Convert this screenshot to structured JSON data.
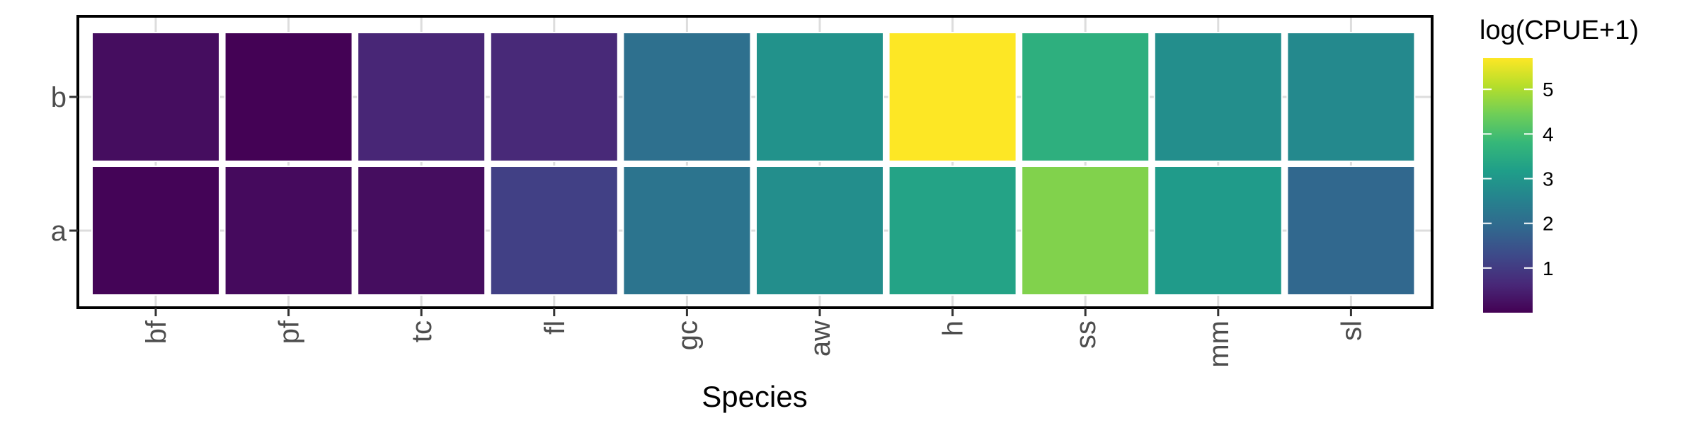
{
  "chart_data": {
    "type": "heatmap",
    "title": "",
    "xlabel": "Species",
    "ylabel": "",
    "x_categories": [
      "bf",
      "pf",
      "tc",
      "fl",
      "gc",
      "aw",
      "h",
      "ss",
      "mm",
      "sl"
    ],
    "y_categories": [
      "a",
      "b"
    ],
    "series": [
      {
        "name": "a",
        "values": [
          0.05,
          0.15,
          0.2,
          1.1,
          2.2,
          2.8,
          3.3,
          4.6,
          3.1,
          1.9
        ]
      },
      {
        "name": "b",
        "values": [
          0.2,
          0.02,
          0.6,
          0.65,
          2.1,
          2.9,
          5.7,
          3.6,
          2.8,
          2.7
        ]
      }
    ],
    "colorbar": {
      "title": "log(CPUE+1)",
      "range": [
        0,
        5.7
      ],
      "ticks": [
        1,
        2,
        3,
        4,
        5
      ],
      "palette": "viridis"
    },
    "grid": true,
    "legend_position": "right"
  },
  "colors": {
    "viridis": [
      "#440154",
      "#482878",
      "#3e4989",
      "#31688e",
      "#26828e",
      "#1f9e89",
      "#35b779",
      "#6ece58",
      "#b5de2b",
      "#fde725"
    ],
    "tile_border": "#ffffff",
    "grid": "#dddddd",
    "panel_border": "#000000"
  }
}
